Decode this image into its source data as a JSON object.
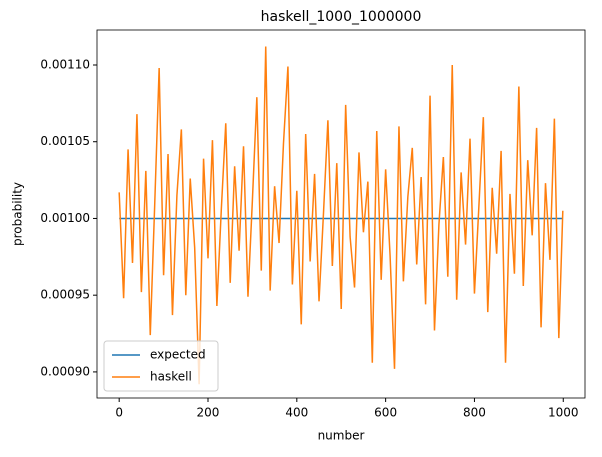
{
  "chart_data": {
    "type": "line",
    "title": "haskell_1000_1000000",
    "xlabel": "number",
    "ylabel": "probability",
    "xlim": [
      -49.95,
      1048.95
    ],
    "xticks": [
      0,
      200,
      400,
      600,
      800,
      1000
    ],
    "ylim": [
      0.000883,
      0.0011228
    ],
    "yticks": [
      {
        "value": 0.0009,
        "label": "0.00090"
      },
      0.00095,
      {
        "value": 0.001,
        "label": "0.00100"
      },
      0.00105,
      {
        "value": 0.0011,
        "label": "0.00110"
      }
    ],
    "legend": "lower left",
    "series": [
      {
        "name": "expected",
        "color": "#1f77b4",
        "x": [
          0,
          999
        ],
        "values": [
          0.001,
          0.001
        ]
      },
      {
        "name": "haskell",
        "color": "#ff7f0e",
        "x": [
          0,
          10,
          20,
          30,
          40,
          50,
          60,
          70,
          80,
          90,
          100,
          110,
          120,
          130,
          140,
          150,
          160,
          170,
          180,
          190,
          200,
          210,
          220,
          230,
          240,
          250,
          260,
          270,
          280,
          290,
          300,
          310,
          320,
          330,
          340,
          350,
          360,
          370,
          380,
          390,
          400,
          410,
          420,
          430,
          440,
          450,
          460,
          470,
          480,
          490,
          500,
          510,
          520,
          530,
          540,
          550,
          560,
          570,
          580,
          590,
          600,
          610,
          620,
          630,
          640,
          650,
          660,
          670,
          680,
          690,
          700,
          710,
          720,
          730,
          740,
          750,
          760,
          770,
          780,
          790,
          800,
          810,
          820,
          830,
          840,
          850,
          860,
          870,
          880,
          890,
          900,
          910,
          920,
          930,
          940,
          950,
          960,
          970,
          980,
          990,
          999
        ],
        "values": [
          0.001017,
          0.000948,
          0.001045,
          0.000971,
          0.001068,
          0.000952,
          0.001031,
          0.000924,
          0.001009,
          0.001098,
          0.000963,
          0.001042,
          0.000937,
          0.001015,
          0.001058,
          0.00095,
          0.001026,
          0.000981,
          0.000892,
          0.001039,
          0.000974,
          0.001051,
          0.000943,
          0.001006,
          0.001062,
          0.000958,
          0.001034,
          0.000979,
          0.001047,
          0.000949,
          0.001012,
          0.001079,
          0.000966,
          0.001112,
          0.000953,
          0.001021,
          0.000984,
          0.001049,
          0.001099,
          0.000957,
          0.001018,
          0.000931,
          0.001055,
          0.000972,
          0.001029,
          0.000946,
          0.001003,
          0.001064,
          0.000969,
          0.001036,
          0.000941,
          0.001074,
          0.000988,
          0.000955,
          0.001043,
          0.000991,
          0.001024,
          0.000906,
          0.001057,
          0.00096,
          0.001032,
          0.000976,
          0.000902,
          0.00106,
          0.000959,
          0.001014,
          0.001046,
          0.00097,
          0.001027,
          0.000944,
          0.00108,
          0.000927,
          0.000996,
          0.00104,
          0.000962,
          0.0011,
          0.000947,
          0.00103,
          0.000983,
          0.001052,
          0.000951,
          0.001008,
          0.001066,
          0.000939,
          0.00102,
          0.000977,
          0.001044,
          0.000906,
          0.001016,
          0.000964,
          0.001086,
          0.000956,
          0.001038,
          0.000989,
          0.001059,
          0.000929,
          0.001023,
          0.000973,
          0.001065,
          0.000922,
          0.001005
        ]
      }
    ]
  }
}
